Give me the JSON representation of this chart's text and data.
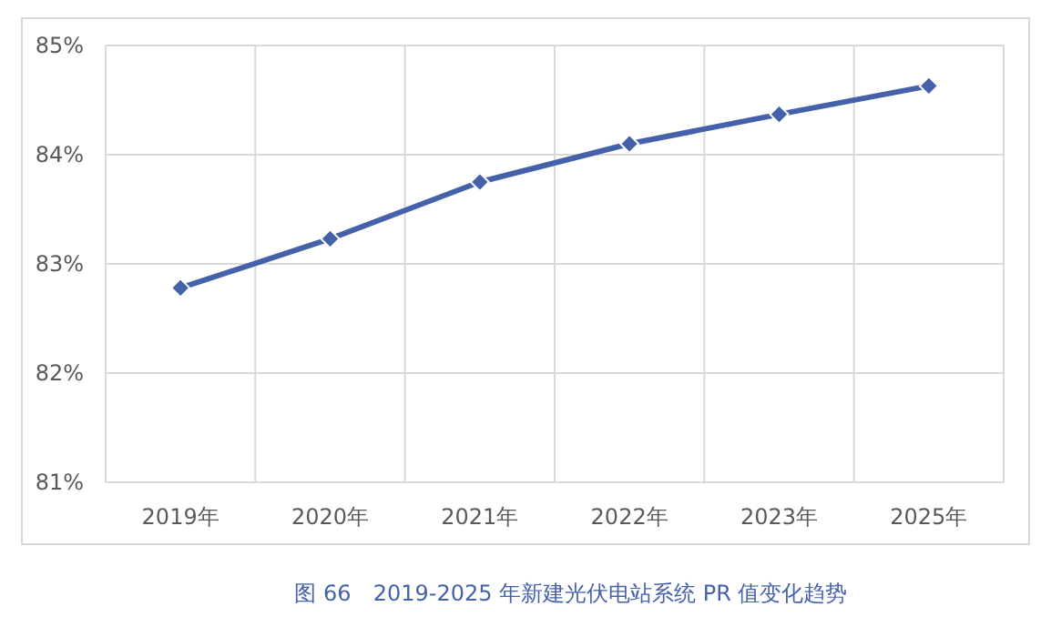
{
  "chart_data": {
    "type": "line",
    "categories": [
      "2019年",
      "2020年",
      "2021年",
      "2022年",
      "2023年",
      "2025年"
    ],
    "series": [
      {
        "color": "#4561aa",
        "values": [
          82.78,
          83.23,
          83.75,
          84.1,
          84.37,
          84.63
        ]
      }
    ],
    "ylim": [
      81,
      85
    ],
    "yticks": [
      {
        "value": 81,
        "label": "81%"
      },
      {
        "value": 82,
        "label": "82%"
      },
      {
        "value": 83,
        "label": "83%"
      },
      {
        "value": 84,
        "label": "84%"
      },
      {
        "value": 85,
        "label": "85%"
      }
    ],
    "grid": true,
    "marker": "diamond",
    "line_style": "solid",
    "annotations": [
      "图 66　2019-2025 年新建光伏电站系统 PR 值变化趋势"
    ]
  }
}
